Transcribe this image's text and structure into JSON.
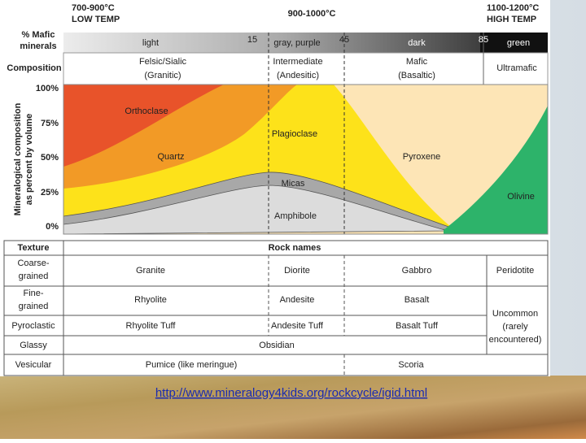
{
  "header": {
    "low_temp": [
      "700-900°C",
      "LOW TEMP"
    ],
    "mid_temp": "900-1000°C",
    "high_temp": [
      "1100-1200°C",
      "HIGH TEMP"
    ]
  },
  "mafic_row": {
    "label": [
      "% Mafic",
      "minerals"
    ],
    "segments": [
      "light",
      "15",
      "gray, purple",
      "45",
      "dark",
      "85",
      "green"
    ]
  },
  "composition_row": {
    "label": "Composition",
    "groups": [
      [
        "Felsic/Sialic",
        "(Granitic)"
      ],
      [
        "Intermediate",
        "(Andesitic)"
      ],
      [
        "Mafic",
        "(Basaltic)"
      ],
      [
        "Ultramafic"
      ]
    ]
  },
  "chart": {
    "axis_title": [
      "Mineralogical composition",
      "as percent by volume"
    ],
    "axis_labels": [
      "100%",
      "75%",
      "50%",
      "25%",
      "0%"
    ],
    "minerals": [
      "Orthoclase",
      "Quartz",
      "Plagioclase",
      "Pyroxene",
      "Micas",
      "Amphibole",
      "Olivine"
    ]
  },
  "table": {
    "headers": [
      "Texture",
      "Rock names"
    ],
    "rows": [
      {
        "texture": [
          "Coarse-",
          "grained"
        ],
        "rocks": [
          "Granite",
          "Diorite",
          "Gabbro",
          "Peridotite"
        ]
      },
      {
        "texture": [
          "Fine-",
          "grained"
        ],
        "rocks": [
          "Rhyolite",
          "Andesite",
          "Basalt"
        ]
      },
      {
        "texture": [
          "Pyroclastic"
        ],
        "rocks": [
          "Rhyolite Tuff",
          "Andesite Tuff",
          "Basalt Tuff"
        ]
      },
      {
        "texture": [
          "Glassy"
        ],
        "rocks": [
          "Obsidian"
        ]
      },
      {
        "texture": [
          "Vesicular"
        ],
        "rocks": [
          "Pumice (like meringue)",
          "Scoria"
        ]
      }
    ],
    "uncommon": [
      "Uncommon",
      "(rarely",
      "encountered)"
    ]
  },
  "footer": {
    "link": "http://www.mineralogy4kids.org/rockcycle/igid.html"
  }
}
